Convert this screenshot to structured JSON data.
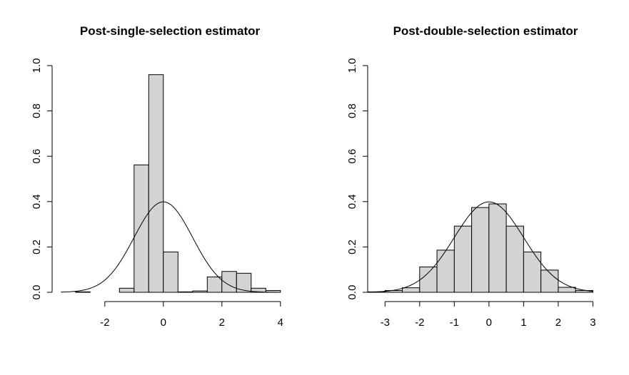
{
  "chart_data": [
    {
      "type": "bar",
      "title": "Post-single-selection estimator",
      "xlabel": "",
      "ylabel": "",
      "xlim": [
        -3.8,
        4.2
      ],
      "ylim": [
        0,
        1
      ],
      "x_ticks": [
        "-2",
        "0",
        "2",
        "4"
      ],
      "y_ticks": [
        "0.0",
        "0.2",
        "0.4",
        "0.6",
        "0.8",
        "1.0"
      ],
      "bin_width": 0.5,
      "bins": [
        {
          "x0": -3.5,
          "x1": -3.0,
          "density": 0.0
        },
        {
          "x0": -3.0,
          "x1": -2.5,
          "density": 0.002
        },
        {
          "x0": -1.5,
          "x1": -1.0,
          "density": 0.018
        },
        {
          "x0": -1.0,
          "x1": -0.5,
          "density": 0.562
        },
        {
          "x0": -0.5,
          "x1": 0.0,
          "density": 0.96
        },
        {
          "x0": 0.0,
          "x1": 0.5,
          "density": 0.178
        },
        {
          "x0": 0.5,
          "x1": 1.0,
          "density": 0.002
        },
        {
          "x0": 1.0,
          "x1": 1.5,
          "density": 0.006
        },
        {
          "x0": 1.5,
          "x1": 2.0,
          "density": 0.068
        },
        {
          "x0": 2.0,
          "x1": 2.5,
          "density": 0.092
        },
        {
          "x0": 2.5,
          "x1": 3.0,
          "density": 0.084
        },
        {
          "x0": 3.0,
          "x1": 3.5,
          "density": 0.018
        },
        {
          "x0": 3.5,
          "x1": 4.0,
          "density": 0.008
        }
      ],
      "curve": {
        "type": "normal_density",
        "mean": 0,
        "sd": 1,
        "x_range": [
          -3.5,
          4.0
        ]
      },
      "bar_fill": "#d3d3d3",
      "stroke": "#000000"
    },
    {
      "type": "bar",
      "title": "Post-double-selection estimator",
      "xlabel": "",
      "ylabel": "",
      "xlim": [
        -3.5,
        3.3
      ],
      "ylim": [
        0,
        1
      ],
      "x_ticks": [
        "-3",
        "-2",
        "-1",
        "0",
        "1",
        "2",
        "3"
      ],
      "y_ticks": [
        "0.0",
        "0.2",
        "0.4",
        "0.6",
        "0.8",
        "1.0"
      ],
      "bin_width": 0.5,
      "bins": [
        {
          "x0": -3.5,
          "x1": -3.0,
          "density": 0.002
        },
        {
          "x0": -3.0,
          "x1": -2.5,
          "density": 0.008
        },
        {
          "x0": -2.5,
          "x1": -2.0,
          "density": 0.02
        },
        {
          "x0": -2.0,
          "x1": -1.5,
          "density": 0.112
        },
        {
          "x0": -1.5,
          "x1": -1.0,
          "density": 0.186
        },
        {
          "x0": -1.0,
          "x1": -0.5,
          "density": 0.292
        },
        {
          "x0": -0.5,
          "x1": 0.0,
          "density": 0.374
        },
        {
          "x0": 0.0,
          "x1": 0.5,
          "density": 0.39
        },
        {
          "x0": 0.5,
          "x1": 1.0,
          "density": 0.292
        },
        {
          "x0": 1.0,
          "x1": 1.5,
          "density": 0.178
        },
        {
          "x0": 1.5,
          "x1": 2.0,
          "density": 0.098
        },
        {
          "x0": 2.0,
          "x1": 2.5,
          "density": 0.022
        },
        {
          "x0": 2.5,
          "x1": 3.0,
          "density": 0.008
        }
      ],
      "curve": {
        "type": "normal_density",
        "mean": 0,
        "sd": 1,
        "x_range": [
          -3.5,
          3.0
        ]
      },
      "bar_fill": "#d3d3d3",
      "stroke": "#000000"
    }
  ]
}
